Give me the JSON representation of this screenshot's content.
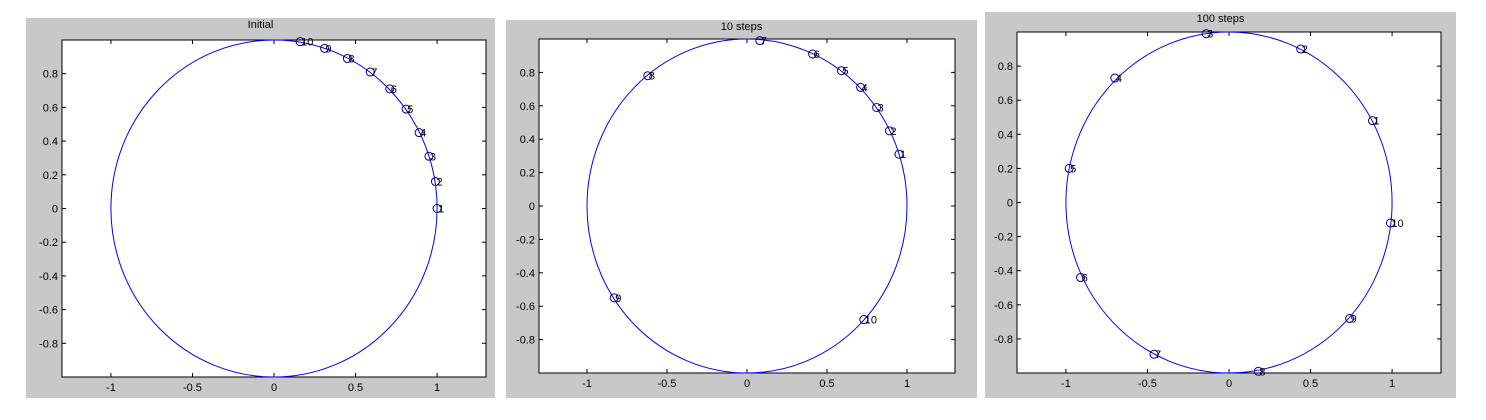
{
  "chart_data": [
    {
      "type": "scatter",
      "title": "Initial",
      "xlim": [
        -1.3,
        1.3
      ],
      "ylim": [
        -1,
        1
      ],
      "xticks": [
        -1,
        -0.5,
        0,
        0.5,
        1
      ],
      "xtick_labels": [
        "-1",
        "-0.5",
        "0",
        "0.5",
        "1"
      ],
      "yticks": [
        0.8,
        0.6,
        0.4,
        0.2,
        0,
        -0.2,
        -0.4,
        -0.6,
        -0.8
      ],
      "ytick_labels": [
        "0.8",
        "0.6",
        "0.4",
        "0.2",
        "0",
        "-0.2",
        "-0.4",
        "-0.6",
        "-0.8"
      ],
      "circle": {
        "radius": 1,
        "color": "#0000ff"
      },
      "points": [
        {
          "label": "1",
          "x": 1.0,
          "y": 0.0
        },
        {
          "label": "2",
          "x": 0.99,
          "y": 0.16
        },
        {
          "label": "3",
          "x": 0.95,
          "y": 0.31
        },
        {
          "label": "4",
          "x": 0.89,
          "y": 0.45
        },
        {
          "label": "5",
          "x": 0.81,
          "y": 0.59
        },
        {
          "label": "6",
          "x": 0.71,
          "y": 0.71
        },
        {
          "label": "7",
          "x": 0.59,
          "y": 0.81
        },
        {
          "label": "8",
          "x": 0.45,
          "y": 0.89
        },
        {
          "label": "9",
          "x": 0.31,
          "y": 0.95
        },
        {
          "label": "10",
          "x": 0.16,
          "y": 0.99
        }
      ]
    },
    {
      "type": "scatter",
      "title": "10 steps",
      "xlim": [
        -1.3,
        1.3
      ],
      "ylim": [
        -1,
        1
      ],
      "xticks": [
        -1,
        -0.5,
        0,
        0.5,
        1
      ],
      "xtick_labels": [
        "-1",
        "-0.5",
        "0",
        "0.5",
        "1"
      ],
      "yticks": [
        0.8,
        0.6,
        0.4,
        0.2,
        0,
        -0.2,
        -0.4,
        -0.6,
        -0.8
      ],
      "ytick_labels": [
        "0.8",
        "0.6",
        "0.4",
        "0.2",
        "0",
        "-0.2",
        "-0.4",
        "-0.6",
        "-0.8"
      ],
      "circle": {
        "radius": 1,
        "color": "#0000ff"
      },
      "points": [
        {
          "label": "1",
          "x": 0.95,
          "y": 0.31
        },
        {
          "label": "2",
          "x": 0.89,
          "y": 0.45
        },
        {
          "label": "3",
          "x": 0.81,
          "y": 0.59
        },
        {
          "label": "4",
          "x": 0.71,
          "y": 0.71
        },
        {
          "label": "5",
          "x": 0.59,
          "y": 0.81
        },
        {
          "label": "6",
          "x": 0.41,
          "y": 0.91
        },
        {
          "label": "7",
          "x": 0.08,
          "y": 0.99
        },
        {
          "label": "8",
          "x": -0.62,
          "y": 0.78
        },
        {
          "label": "9",
          "x": -0.83,
          "y": -0.55
        },
        {
          "label": "10",
          "x": 0.73,
          "y": -0.68
        }
      ]
    },
    {
      "type": "scatter",
      "title": "100 steps",
      "xlim": [
        -1.3,
        1.3
      ],
      "ylim": [
        -1,
        1
      ],
      "xticks": [
        -1,
        -0.5,
        0,
        0.5,
        1
      ],
      "xtick_labels": [
        "-1",
        "-0.5",
        "0",
        "0.5",
        "1"
      ],
      "yticks": [
        0.8,
        0.6,
        0.4,
        0.2,
        0,
        -0.2,
        -0.4,
        -0.6,
        -0.8
      ],
      "ytick_labels": [
        "0.8",
        "0.6",
        "0.4",
        "0.2",
        "0",
        "-0.2",
        "-0.4",
        "-0.6",
        "-0.8"
      ],
      "circle": {
        "radius": 1,
        "color": "#0000ff"
      },
      "points": [
        {
          "label": "1",
          "x": 0.88,
          "y": 0.48
        },
        {
          "label": "2",
          "x": 0.44,
          "y": 0.9
        },
        {
          "label": "3",
          "x": -0.14,
          "y": 0.99
        },
        {
          "label": "4",
          "x": -0.7,
          "y": 0.73
        },
        {
          "label": "5",
          "x": -0.98,
          "y": 0.2
        },
        {
          "label": "6",
          "x": -0.91,
          "y": -0.44
        },
        {
          "label": "7",
          "x": -0.46,
          "y": -0.89
        },
        {
          "label": "8",
          "x": 0.18,
          "y": -0.99
        },
        {
          "label": "9",
          "x": 0.74,
          "y": -0.68
        },
        {
          "label": "10",
          "x": 0.99,
          "y": -0.12
        }
      ]
    }
  ]
}
